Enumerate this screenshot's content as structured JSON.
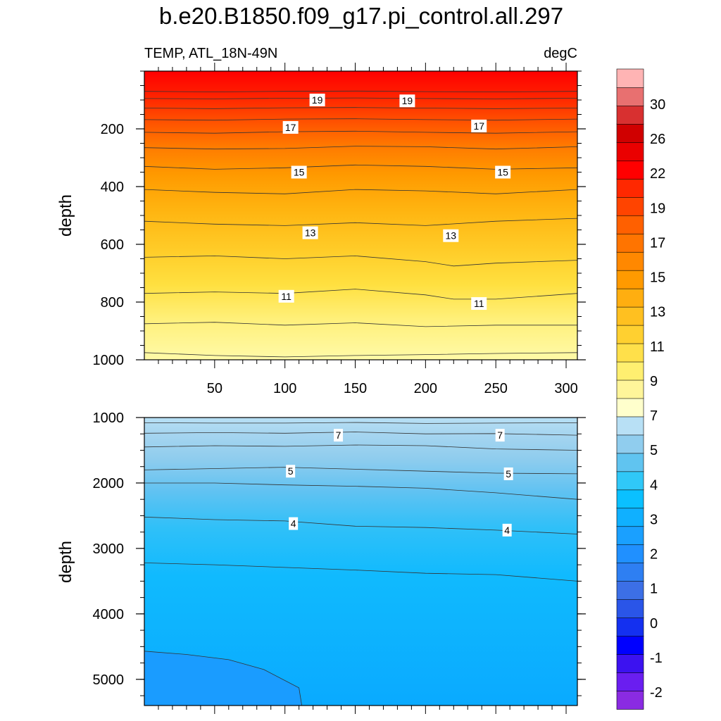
{
  "chart_data": {
    "type": "heatmap",
    "title": "b.e20.B1850.f09_g17.pi_control.all.297",
    "variable_label": "TEMP, ATL_18N-49N",
    "units_label": "degC",
    "xlabel": "",
    "ylabel": "depth",
    "x_range": [
      0,
      308
    ],
    "x_ticks": [
      "50",
      "100",
      "150",
      "200",
      "250",
      "300"
    ],
    "panels": [
      {
        "name": "upper",
        "ylim": [
          0,
          1000
        ],
        "y_ticks": [
          "200",
          "400",
          "600",
          "800",
          "1000"
        ],
        "contour_levels": [
          {
            "level": 10,
            "depth_at_x": [
              [
                0,
                975
              ],
              [
                50,
                985
              ],
              [
                100,
                990
              ],
              [
                150,
                985
              ],
              [
                200,
                982
              ],
              [
                250,
                978
              ],
              [
                308,
                975
              ]
            ]
          },
          {
            "level": 10.5,
            "depth_at_x": [
              [
                0,
                875
              ],
              [
                50,
                870
              ],
              [
                100,
                880
              ],
              [
                150,
                872
              ],
              [
                200,
                885
              ],
              [
                250,
                880
              ],
              [
                308,
                880
              ]
            ]
          },
          {
            "level": 11,
            "depth_at_x": [
              [
                0,
                770
              ],
              [
                50,
                765
              ],
              [
                100,
                770
              ],
              [
                150,
                755
              ],
              [
                200,
                775
              ],
              [
                220,
                790
              ],
              [
                250,
                790
              ],
              [
                308,
                770
              ]
            ]
          },
          {
            "level": 12,
            "depth_at_x": [
              [
                0,
                645
              ],
              [
                50,
                640
              ],
              [
                100,
                650
              ],
              [
                150,
                640
              ],
              [
                200,
                660
              ],
              [
                220,
                675
              ],
              [
                250,
                665
              ],
              [
                308,
                655
              ]
            ]
          },
          {
            "level": 13,
            "depth_at_x": [
              [
                0,
                520
              ],
              [
                50,
                530
              ],
              [
                100,
                535
              ],
              [
                150,
                525
              ],
              [
                200,
                535
              ],
              [
                250,
                520
              ],
              [
                308,
                510
              ]
            ]
          },
          {
            "level": 14,
            "depth_at_x": [
              [
                0,
                410
              ],
              [
                50,
                420
              ],
              [
                100,
                425
              ],
              [
                150,
                410
              ],
              [
                200,
                415
              ],
              [
                250,
                425
              ],
              [
                308,
                410
              ]
            ]
          },
          {
            "level": 15,
            "depth_at_x": [
              [
                0,
                330
              ],
              [
                50,
                340
              ],
              [
                100,
                335
              ],
              [
                150,
                325
              ],
              [
                200,
                330
              ],
              [
                250,
                340
              ],
              [
                308,
                335
              ]
            ]
          },
          {
            "level": 16,
            "depth_at_x": [
              [
                0,
                265
              ],
              [
                50,
                270
              ],
              [
                100,
                268
              ],
              [
                150,
                260
              ],
              [
                200,
                262
              ],
              [
                250,
                270
              ],
              [
                308,
                262
              ]
            ]
          },
          {
            "level": 17,
            "depth_at_x": [
              [
                0,
                212
              ],
              [
                50,
                215
              ],
              [
                100,
                210
              ],
              [
                150,
                208
              ],
              [
                200,
                212
              ],
              [
                250,
                215
              ],
              [
                308,
                210
              ]
            ]
          },
          {
            "level": 18,
            "depth_at_x": [
              [
                0,
                168
              ],
              [
                50,
                170
              ],
              [
                100,
                166
              ],
              [
                150,
                165
              ],
              [
                200,
                168
              ],
              [
                250,
                170
              ],
              [
                308,
                166
              ]
            ]
          },
          {
            "level": 19,
            "depth_at_x": [
              [
                0,
                128
              ],
              [
                50,
                130
              ],
              [
                100,
                127
              ],
              [
                150,
                126
              ],
              [
                200,
                128
              ],
              [
                250,
                130
              ],
              [
                308,
                128
              ]
            ]
          },
          {
            "level": 20,
            "depth_at_x": [
              [
                0,
                95
              ],
              [
                50,
                96
              ],
              [
                100,
                94
              ],
              [
                150,
                93
              ],
              [
                200,
                95
              ],
              [
                250,
                96
              ],
              [
                308,
                94
              ]
            ]
          },
          {
            "level": 21,
            "depth_at_x": [
              [
                0,
                70
              ],
              [
                50,
                72
              ],
              [
                100,
                70
              ],
              [
                150,
                69
              ],
              [
                200,
                71
              ],
              [
                250,
                72
              ],
              [
                308,
                70
              ]
            ]
          }
        ],
        "contour_labels": [
          {
            "text": "19",
            "x": 123,
            "depth": 100
          },
          {
            "text": "19",
            "x": 187,
            "depth": 103
          },
          {
            "text": "17",
            "x": 104,
            "depth": 195
          },
          {
            "text": "17",
            "x": 238,
            "depth": 190
          },
          {
            "text": "15",
            "x": 110,
            "depth": 350
          },
          {
            "text": "15",
            "x": 255,
            "depth": 350
          },
          {
            "text": "13",
            "x": 118,
            "depth": 560
          },
          {
            "text": "13",
            "x": 218,
            "depth": 570
          },
          {
            "text": "11",
            "x": 101,
            "depth": 780
          },
          {
            "text": "11",
            "x": 238,
            "depth": 805
          }
        ]
      },
      {
        "name": "lower",
        "ylim": [
          1000,
          5400
        ],
        "y_ticks": [
          "1000",
          "2000",
          "3000",
          "4000",
          "5000"
        ],
        "contour_levels": [
          {
            "level": 8,
            "depth_at_x": [
              [
                0,
                1080
              ],
              [
                50,
                1085
              ],
              [
                100,
                1085
              ],
              [
                150,
                1075
              ],
              [
                200,
                1090
              ],
              [
                250,
                1085
              ],
              [
                308,
                1080
              ]
            ]
          },
          {
            "level": 7,
            "depth_at_x": [
              [
                0,
                1240
              ],
              [
                50,
                1230
              ],
              [
                100,
                1240
              ],
              [
                150,
                1220
              ],
              [
                200,
                1250
              ],
              [
                250,
                1245
              ],
              [
                308,
                1270
              ]
            ]
          },
          {
            "level": 6,
            "depth_at_x": [
              [
                0,
                1450
              ],
              [
                50,
                1430
              ],
              [
                100,
                1440
              ],
              [
                150,
                1420
              ],
              [
                200,
                1430
              ],
              [
                250,
                1480
              ],
              [
                308,
                1500
              ]
            ]
          },
          {
            "level": 5,
            "depth_at_x": [
              [
                0,
                1800
              ],
              [
                50,
                1780
              ],
              [
                100,
                1760
              ],
              [
                150,
                1790
              ],
              [
                200,
                1820
              ],
              [
                250,
                1850
              ],
              [
                308,
                1860
              ]
            ]
          },
          {
            "level": 4.5,
            "depth_at_x": [
              [
                0,
                2000
              ],
              [
                50,
                2000
              ],
              [
                100,
                2030
              ],
              [
                150,
                2050
              ],
              [
                200,
                2080
              ],
              [
                250,
                2150
              ],
              [
                308,
                2250
              ]
            ]
          },
          {
            "level": 4,
            "depth_at_x": [
              [
                0,
                2520
              ],
              [
                50,
                2560
              ],
              [
                100,
                2580
              ],
              [
                150,
                2660
              ],
              [
                200,
                2680
              ],
              [
                250,
                2720
              ],
              [
                308,
                2780
              ]
            ]
          },
          {
            "level": 3.5,
            "depth_at_x": [
              [
                0,
                3220
              ],
              [
                50,
                3250
              ],
              [
                100,
                3290
              ],
              [
                150,
                3330
              ],
              [
                200,
                3380
              ],
              [
                250,
                3400
              ],
              [
                308,
                3500
              ]
            ]
          },
          {
            "level": 3,
            "depth_at_x": [
              [
                0,
                4570
              ],
              [
                30,
                4620
              ],
              [
                60,
                4700
              ],
              [
                85,
                4850
              ],
              [
                110,
                5130
              ],
              [
                112,
                5400
              ]
            ]
          }
        ],
        "contour_labels": [
          {
            "text": "7",
            "x": 138,
            "depth": 1270
          },
          {
            "text": "7",
            "x": 253,
            "depth": 1270
          },
          {
            "text": "5",
            "x": 104,
            "depth": 1820
          },
          {
            "text": "5",
            "x": 259,
            "depth": 1860
          },
          {
            "text": "4",
            "x": 106,
            "depth": 2620
          },
          {
            "text": "4",
            "x": 258,
            "depth": 2720
          }
        ]
      }
    ],
    "colorbar": {
      "colors": [
        "#8a2be2",
        "#6a1ef0",
        "#3c12f0",
        "#0000ff",
        "#1430f0",
        "#2a55e8",
        "#3c6fe6",
        "#2e7ff2",
        "#2090ff",
        "#1aa0ff",
        "#10b0ff",
        "#0ac0ff",
        "#30c8f8",
        "#60c4f0",
        "#90cdee",
        "#b8e0f5",
        "#ffffcc",
        "#fff59a",
        "#ffef70",
        "#ffe04a",
        "#ffd030",
        "#ffc020",
        "#ffae10",
        "#ff9a00",
        "#ff8800",
        "#ff7400",
        "#ff6000",
        "#ff4400",
        "#ff2800",
        "#ff0000",
        "#ea0000",
        "#d00000",
        "#d83030",
        "#e87070",
        "#ffb4b4"
      ],
      "tick_labels": [
        "-2",
        "-1",
        "0",
        "1",
        "2",
        "3",
        "4",
        "5",
        "7",
        "9",
        "11",
        "13",
        "15",
        "17",
        "19",
        "22",
        "26",
        "30"
      ]
    }
  }
}
